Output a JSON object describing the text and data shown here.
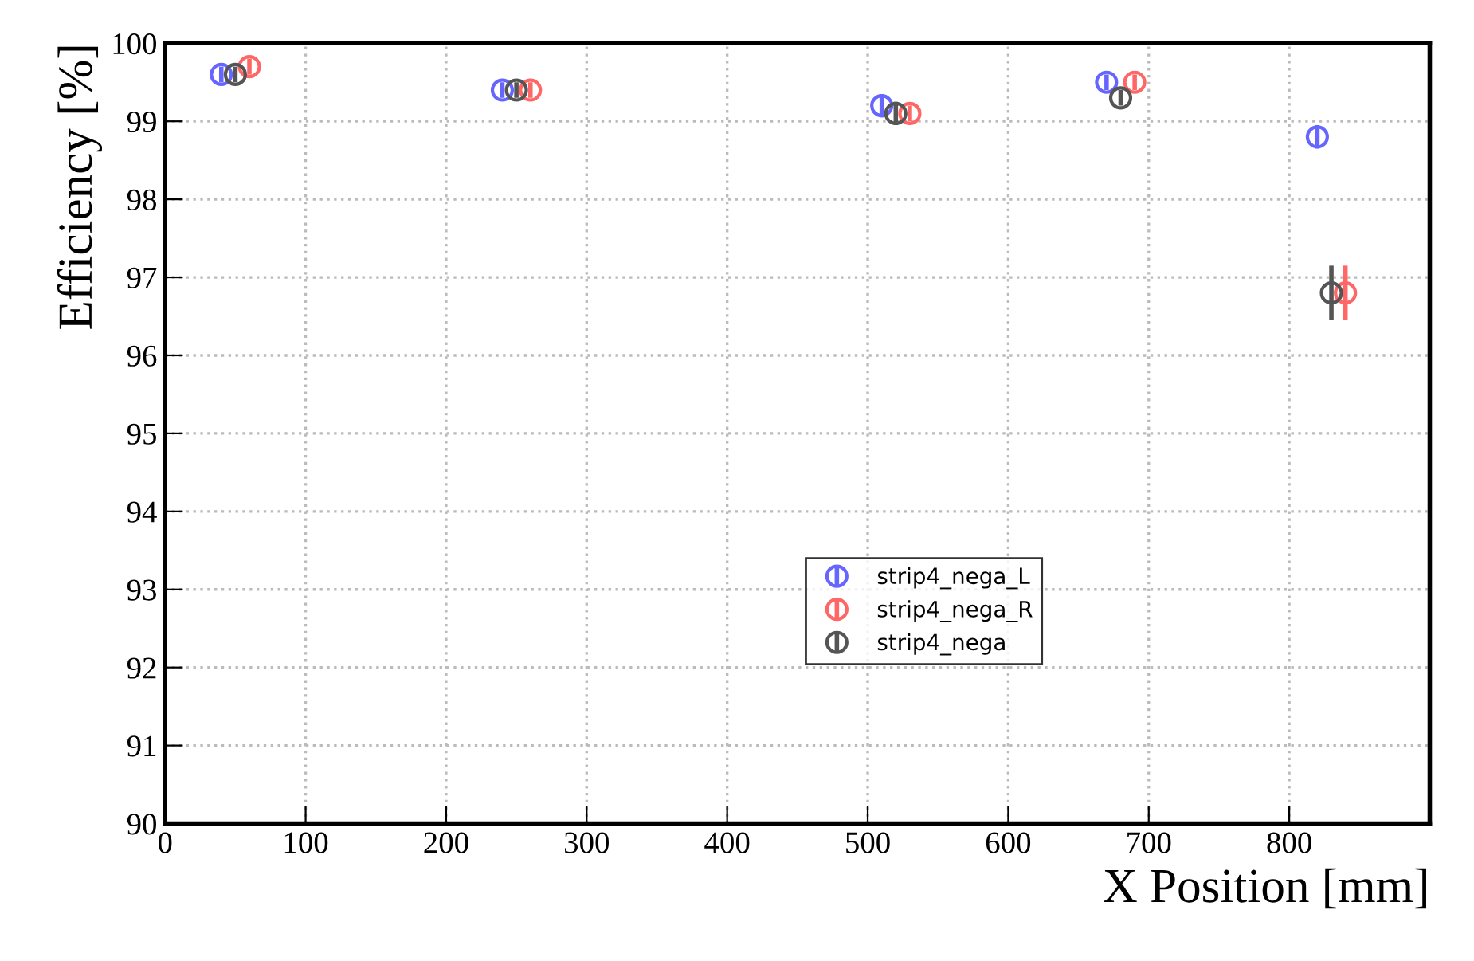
{
  "chart_data": {
    "type": "scatter",
    "xlabel": "X Position [mm]",
    "ylabel": "Efficiency [%]",
    "xlim": [
      0,
      900
    ],
    "ylim": [
      90,
      100
    ],
    "xticks": [
      0,
      100,
      200,
      300,
      400,
      500,
      600,
      700,
      800
    ],
    "yticks": [
      90,
      91,
      92,
      93,
      94,
      95,
      96,
      97,
      98,
      99,
      100
    ],
    "grid": true,
    "legend": "bottom",
    "marker": "circle",
    "series": [
      {
        "name": "strip4_nega_L",
        "color": "#6666ff",
        "x": [
          40,
          240,
          510,
          670,
          820
        ],
        "values": [
          99.6,
          99.4,
          99.2,
          99.5,
          98.8
        ],
        "errors": [
          0.1,
          0.1,
          0.15,
          0.1,
          0.15
        ]
      },
      {
        "name": "strip4_nega_R",
        "color": "#ff6666",
        "x": [
          60,
          260,
          530,
          690,
          840
        ],
        "values": [
          99.7,
          99.4,
          99.1,
          99.5,
          96.8
        ],
        "errors": [
          0.1,
          0.1,
          0.1,
          0.1,
          0.35
        ]
      },
      {
        "name": "strip4_nega",
        "color": "#555555",
        "x": [
          50,
          250,
          520,
          680,
          830
        ],
        "values": [
          99.6,
          99.4,
          99.1,
          99.3,
          96.8
        ],
        "errors": [
          0.1,
          0.1,
          0.15,
          0.1,
          0.35
        ]
      }
    ]
  }
}
